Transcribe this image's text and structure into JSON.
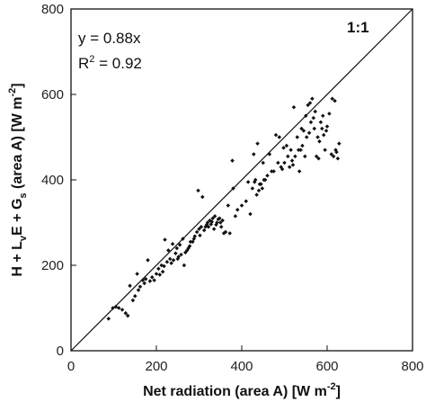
{
  "chart_data": {
    "type": "scatter",
    "title": "",
    "xlabel": {
      "main": "Net radiation (area A) [W m",
      "sup": "-2",
      "end": "]"
    },
    "ylabel": {
      "p1": "H + L",
      "p1sub": "v",
      "p2": "E + G",
      "p2sub": "s",
      "p3": " (area A) [W m",
      "p3sup": "-2",
      "p4": "]"
    },
    "xlim": [
      0,
      800
    ],
    "ylim": [
      0,
      800
    ],
    "xticks": [
      0,
      200,
      400,
      600,
      800
    ],
    "yticks": [
      0,
      200,
      400,
      600,
      800
    ],
    "grid": false,
    "reference_line": {
      "label": "1:1",
      "slope": 1
    },
    "annotations": {
      "equation": "y = 0.88x",
      "r2_prefix": "R",
      "r2_sup": "2",
      "r2_value": " = 0.92"
    },
    "points": [
      [
        88,
        75
      ],
      [
        98,
        100
      ],
      [
        105,
        103
      ],
      [
        112,
        100
      ],
      [
        120,
        96
      ],
      [
        128,
        88
      ],
      [
        133,
        82
      ],
      [
        138,
        152
      ],
      [
        145,
        118
      ],
      [
        150,
        128
      ],
      [
        155,
        180
      ],
      [
        158,
        142
      ],
      [
        162,
        150
      ],
      [
        168,
        165
      ],
      [
        172,
        158
      ],
      [
        175,
        168
      ],
      [
        180,
        212
      ],
      [
        185,
        163
      ],
      [
        190,
        172
      ],
      [
        195,
        165
      ],
      [
        200,
        180
      ],
      [
        205,
        192
      ],
      [
        208,
        178
      ],
      [
        212,
        200
      ],
      [
        215,
        185
      ],
      [
        218,
        198
      ],
      [
        220,
        260
      ],
      [
        225,
        208
      ],
      [
        228,
        235
      ],
      [
        232,
        215
      ],
      [
        235,
        205
      ],
      [
        238,
        250
      ],
      [
        240,
        212
      ],
      [
        245,
        228
      ],
      [
        248,
        240
      ],
      [
        250,
        215
      ],
      [
        252,
        220
      ],
      [
        255,
        248
      ],
      [
        258,
        225
      ],
      [
        262,
        262
      ],
      [
        265,
        200
      ],
      [
        268,
        230
      ],
      [
        272,
        235
      ],
      [
        275,
        240
      ],
      [
        278,
        245
      ],
      [
        280,
        255
      ],
      [
        285,
        255
      ],
      [
        288,
        262
      ],
      [
        290,
        268
      ],
      [
        295,
        278
      ],
      [
        298,
        375
      ],
      [
        300,
        285
      ],
      [
        302,
        270
      ],
      [
        305,
        290
      ],
      [
        308,
        360
      ],
      [
        312,
        282
      ],
      [
        315,
        290
      ],
      [
        318,
        295
      ],
      [
        320,
        300
      ],
      [
        322,
        290
      ],
      [
        325,
        305
      ],
      [
        328,
        296
      ],
      [
        330,
        302
      ],
      [
        332,
        310
      ],
      [
        335,
        285
      ],
      [
        337,
        315
      ],
      [
        340,
        295
      ],
      [
        342,
        300
      ],
      [
        345,
        308
      ],
      [
        348,
        310
      ],
      [
        350,
        300
      ],
      [
        352,
        290
      ],
      [
        355,
        305
      ],
      [
        358,
        275
      ],
      [
        362,
        278
      ],
      [
        368,
        340
      ],
      [
        372,
        275
      ],
      [
        378,
        445
      ],
      [
        380,
        380
      ],
      [
        385,
        315
      ],
      [
        390,
        330
      ],
      [
        400,
        340
      ],
      [
        410,
        350
      ],
      [
        415,
        395
      ],
      [
        420,
        320
      ],
      [
        425,
        380
      ],
      [
        428,
        460
      ],
      [
        430,
        395
      ],
      [
        432,
        400
      ],
      [
        435,
        365
      ],
      [
        437,
        485
      ],
      [
        440,
        375
      ],
      [
        442,
        390
      ],
      [
        445,
        390
      ],
      [
        448,
        380
      ],
      [
        450,
        440
      ],
      [
        452,
        400
      ],
      [
        455,
        400
      ],
      [
        460,
        410
      ],
      [
        465,
        460
      ],
      [
        470,
        420
      ],
      [
        475,
        420
      ],
      [
        480,
        505
      ],
      [
        485,
        440
      ],
      [
        488,
        500
      ],
      [
        492,
        430
      ],
      [
        495,
        425
      ],
      [
        498,
        475
      ],
      [
        500,
        440
      ],
      [
        505,
        480
      ],
      [
        508,
        455
      ],
      [
        512,
        430
      ],
      [
        515,
        470
      ],
      [
        518,
        445
      ],
      [
        520,
        435
      ],
      [
        522,
        570
      ],
      [
        525,
        455
      ],
      [
        530,
        500
      ],
      [
        533,
        470
      ],
      [
        535,
        420
      ],
      [
        538,
        470
      ],
      [
        540,
        520
      ],
      [
        542,
        480
      ],
      [
        545,
        515
      ],
      [
        548,
        455
      ],
      [
        550,
        550
      ],
      [
        552,
        500
      ],
      [
        555,
        575
      ],
      [
        558,
        510
      ],
      [
        560,
        580
      ],
      [
        562,
        535
      ],
      [
        565,
        590
      ],
      [
        568,
        545
      ],
      [
        570,
        520
      ],
      [
        572,
        560
      ],
      [
        575,
        455
      ],
      [
        578,
        500
      ],
      [
        580,
        450
      ],
      [
        582,
        490
      ],
      [
        585,
        535
      ],
      [
        588,
        520
      ],
      [
        590,
        550
      ],
      [
        592,
        505
      ],
      [
        595,
        470
      ],
      [
        598,
        515
      ],
      [
        600,
        525
      ],
      [
        605,
        555
      ],
      [
        610,
        460
      ],
      [
        612,
        590
      ],
      [
        615,
        455
      ],
      [
        618,
        585
      ],
      [
        620,
        470
      ],
      [
        622,
        465
      ],
      [
        625,
        450
      ],
      [
        628,
        485
      ]
    ]
  }
}
